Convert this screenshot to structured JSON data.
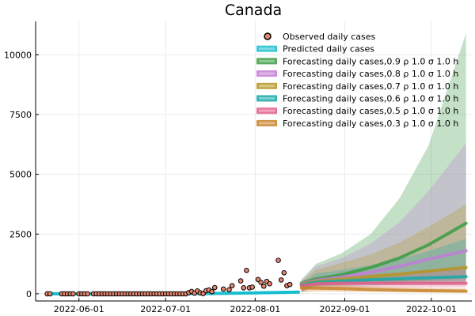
{
  "chart_data": {
    "type": "line",
    "title": "Canada",
    "xlabel": "",
    "ylabel": "",
    "x_axis": "date",
    "xlim": [
      "2022-05-17",
      "2022-10-15"
    ],
    "ylim": [
      -300,
      11400
    ],
    "grid": true,
    "legend_position": "top-right",
    "x_ticks": [
      {
        "date": "2022-06-01",
        "label": "2022-06-01"
      },
      {
        "date": "2022-07-01",
        "label": "2022-07-01"
      },
      {
        "date": "2022-08-01",
        "label": "2022-08-01"
      },
      {
        "date": "2022-09-01",
        "label": "2022-09-01"
      },
      {
        "date": "2022-10-01",
        "label": "2022-10-01"
      }
    ],
    "y_ticks": [
      {
        "value": 0,
        "label": "0"
      },
      {
        "value": 2500,
        "label": "2500"
      },
      {
        "value": 5000,
        "label": "5000"
      },
      {
        "value": 7500,
        "label": "7500"
      },
      {
        "value": 10000,
        "label": "10000"
      }
    ],
    "observed": {
      "name": "Observed daily cases",
      "color": "#e5856e",
      "points": [
        [
          "2022-05-21",
          0
        ],
        [
          "2022-05-22",
          0
        ],
        [
          "2022-05-26",
          0
        ],
        [
          "2022-05-27",
          0
        ],
        [
          "2022-05-28",
          0
        ],
        [
          "2022-05-29",
          0
        ],
        [
          "2022-05-30",
          0
        ],
        [
          "2022-06-01",
          0
        ],
        [
          "2022-06-02",
          0
        ],
        [
          "2022-06-03",
          0
        ],
        [
          "2022-06-04",
          0
        ],
        [
          "2022-06-06",
          0
        ],
        [
          "2022-06-07",
          0
        ],
        [
          "2022-06-08",
          0
        ],
        [
          "2022-06-09",
          0
        ],
        [
          "2022-06-10",
          0
        ],
        [
          "2022-06-11",
          0
        ],
        [
          "2022-06-12",
          0
        ],
        [
          "2022-06-13",
          0
        ],
        [
          "2022-06-14",
          0
        ],
        [
          "2022-06-15",
          0
        ],
        [
          "2022-06-16",
          0
        ],
        [
          "2022-06-17",
          0
        ],
        [
          "2022-06-18",
          0
        ],
        [
          "2022-06-19",
          0
        ],
        [
          "2022-06-20",
          0
        ],
        [
          "2022-06-21",
          0
        ],
        [
          "2022-06-22",
          0
        ],
        [
          "2022-06-23",
          0
        ],
        [
          "2022-06-24",
          0
        ],
        [
          "2022-06-25",
          0
        ],
        [
          "2022-06-26",
          0
        ],
        [
          "2022-06-27",
          0
        ],
        [
          "2022-06-28",
          0
        ],
        [
          "2022-06-29",
          0
        ],
        [
          "2022-06-30",
          0
        ],
        [
          "2022-07-01",
          0
        ],
        [
          "2022-07-02",
          0
        ],
        [
          "2022-07-03",
          0
        ],
        [
          "2022-07-04",
          0
        ],
        [
          "2022-07-05",
          0
        ],
        [
          "2022-07-06",
          0
        ],
        [
          "2022-07-07",
          0
        ],
        [
          "2022-07-08",
          0
        ],
        [
          "2022-07-09",
          50
        ],
        [
          "2022-07-10",
          100
        ],
        [
          "2022-07-11",
          30
        ],
        [
          "2022-07-12",
          120
        ],
        [
          "2022-07-13",
          40
        ],
        [
          "2022-07-14",
          10
        ],
        [
          "2022-07-15",
          130
        ],
        [
          "2022-07-16",
          160
        ],
        [
          "2022-07-17",
          90
        ],
        [
          "2022-07-18",
          260
        ],
        [
          "2022-07-21",
          200
        ],
        [
          "2022-07-23",
          170
        ],
        [
          "2022-07-24",
          340
        ],
        [
          "2022-07-27",
          540
        ],
        [
          "2022-07-28",
          250
        ],
        [
          "2022-07-29",
          980
        ],
        [
          "2022-07-30",
          250
        ],
        [
          "2022-07-31",
          280
        ],
        [
          "2022-08-02",
          600
        ],
        [
          "2022-08-03",
          480
        ],
        [
          "2022-08-04",
          320
        ],
        [
          "2022-08-05",
          520
        ],
        [
          "2022-08-06",
          420
        ],
        [
          "2022-08-09",
          1400
        ],
        [
          "2022-08-10",
          580
        ],
        [
          "2022-08-11",
          880
        ],
        [
          "2022-08-12",
          340
        ],
        [
          "2022-08-13",
          390
        ]
      ]
    },
    "predicted": {
      "name": "Predicted daily cases",
      "color": "#17becf",
      "points": [
        [
          "2022-05-23",
          0
        ],
        [
          "2022-06-20",
          0
        ],
        [
          "2022-07-15",
          10
        ],
        [
          "2022-08-01",
          40
        ],
        [
          "2022-08-16",
          70
        ]
      ]
    },
    "forecast_x": [
      "2022-08-17",
      "2022-08-22",
      "2022-08-31",
      "2022-09-10",
      "2022-09-20",
      "2022-09-30",
      "2022-10-13"
    ],
    "forecasts": [
      {
        "name": "Forecasting daily cases,0.9 ρ 1.0 σ 1.0 h",
        "color": "#3b9c44",
        "fill_opacity": 0.3,
        "mean": [
          450,
          620,
          800,
          1100,
          1500,
          2050,
          2950
        ],
        "lower": [
          120,
          350,
          400,
          450,
          500,
          550,
          620
        ],
        "upper": [
          600,
          1250,
          1700,
          2500,
          4000,
          6200,
          10900
        ]
      },
      {
        "name": "Forecasting daily cases,0.8 ρ 1.0 σ 1.0 h",
        "color": "#c27bd6",
        "fill_opacity": 0.28,
        "mean": [
          420,
          560,
          700,
          900,
          1150,
          1450,
          1800
        ],
        "lower": [
          110,
          330,
          380,
          420,
          460,
          500,
          540
        ],
        "upper": [
          560,
          1150,
          1500,
          2100,
          3000,
          4300,
          6300
        ]
      },
      {
        "name": "Forecasting daily cases,0.7 ρ 1.0 σ 1.0 h",
        "color": "#b59722",
        "fill_opacity": 0.28,
        "mean": [
          400,
          520,
          620,
          720,
          820,
          950,
          1100
        ],
        "lower": [
          100,
          320,
          360,
          390,
          420,
          450,
          480
        ],
        "upper": [
          520,
          1000,
          1300,
          1650,
          2150,
          2800,
          3750
        ]
      },
      {
        "name": "Forecasting daily cases,0.6 ρ 1.0 σ 1.0 h",
        "color": "#18a8a8",
        "fill_opacity": 0.28,
        "mean": [
          370,
          480,
          540,
          590,
          630,
          670,
          720
        ],
        "lower": [
          90,
          300,
          330,
          350,
          370,
          390,
          400
        ],
        "upper": [
          480,
          850,
          1000,
          1200,
          1450,
          1800,
          2300
        ]
      },
      {
        "name": "Forecasting daily cases,0.5 ρ 1.0 σ 1.0 h",
        "color": "#e25e8a",
        "fill_opacity": 0.28,
        "mean": [
          340,
          420,
          440,
          440,
          440,
          440,
          440
        ],
        "lower": [
          80,
          260,
          270,
          270,
          270,
          270,
          270
        ],
        "upper": [
          440,
          700,
          760,
          820,
          900,
          1000,
          1150
        ]
      },
      {
        "name": "Forecasting daily cases,0.3 ρ 1.0 σ 1.0 h",
        "color": "#c8822a",
        "fill_opacity": 0.3,
        "mean": [
          250,
          240,
          220,
          180,
          150,
          130,
          110
        ],
        "lower": [
          50,
          100,
          90,
          80,
          70,
          60,
          50
        ],
        "upper": [
          350,
          380,
          360,
          320,
          280,
          250,
          230
        ]
      }
    ]
  }
}
